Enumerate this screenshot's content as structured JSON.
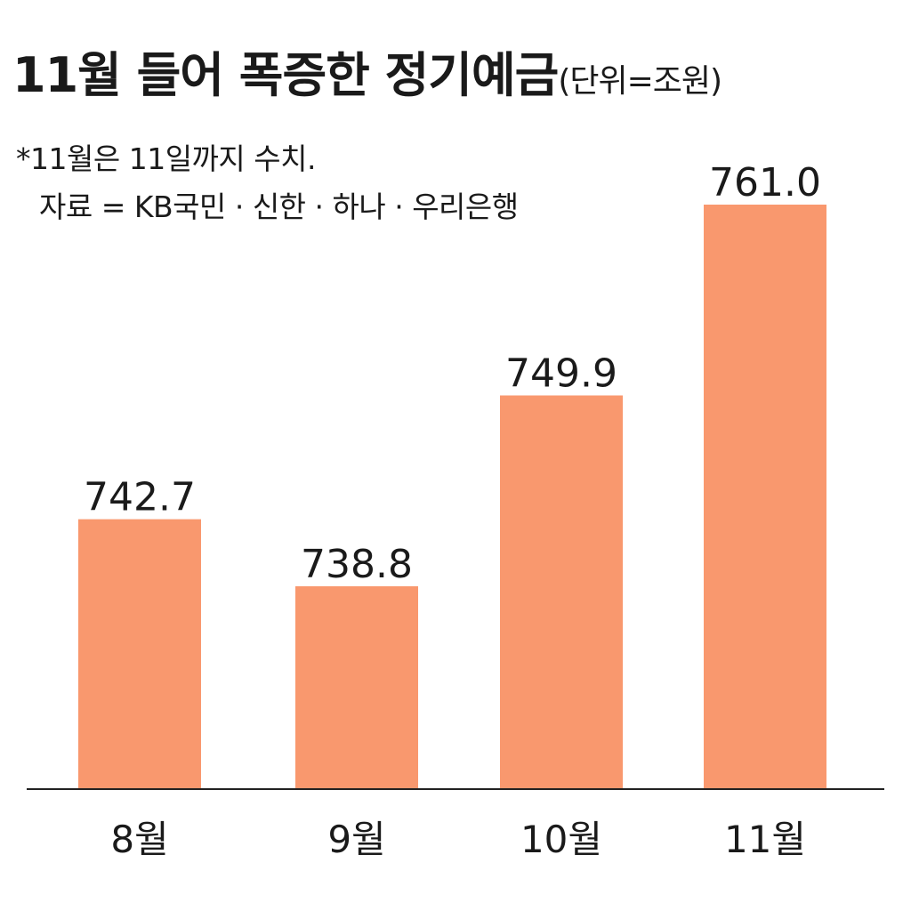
{
  "title": "11월 들어 폭증한 정기예금",
  "unit": "(단위=조원)",
  "notes": {
    "line1": "*11월은 11일까지 수치.",
    "line2": "자료 = KB국민 · 신한 · 하나 · 우리은행"
  },
  "colors": {
    "bar": "#F9986E",
    "axis": "#222222",
    "text": "#1a1a1a"
  },
  "chart_data": {
    "type": "bar",
    "title": "11월 들어 폭증한 정기예금",
    "categories": [
      "8월",
      "9월",
      "10월",
      "11월"
    ],
    "values": [
      742.7,
      738.8,
      749.9,
      761.0
    ],
    "value_labels": [
      "742.7",
      "738.8",
      "749.9",
      "761.0"
    ],
    "xlabel": "",
    "ylabel": "",
    "unit": "조원",
    "grid": false,
    "legend": "none"
  }
}
